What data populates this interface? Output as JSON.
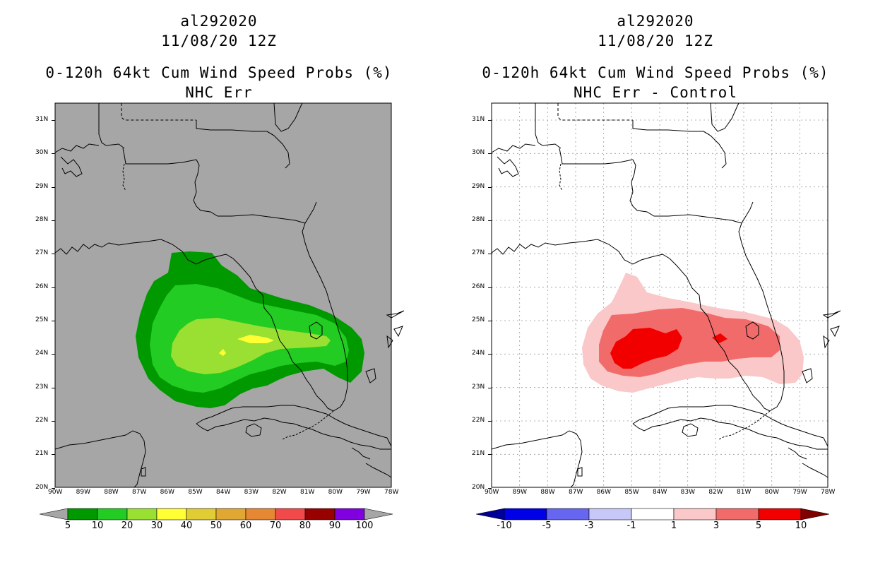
{
  "colors": {
    "land_gray": "#a6a6a6",
    "grid": "#9a9a9a"
  },
  "left_panel": {
    "title_line1": "al292020",
    "title_line2": "11/08/20 12Z",
    "title_line3": "0-120h 64kt Cum Wind Speed Probs (%)",
    "title_line4": "NHC Err",
    "colorbar": {
      "colors": [
        "#009900",
        "#22cc22",
        "#99e033",
        "#ffff33",
        "#e0cc33",
        "#e0a833",
        "#e68833",
        "#f24a4a",
        "#990000",
        "#8000e0"
      ],
      "labels": [
        "5",
        "10",
        "20",
        "30",
        "40",
        "50",
        "60",
        "70",
        "80",
        "90",
        "100"
      ],
      "low_extend_color": "#a6a6a6",
      "high_extend_color": "#a6a6a6"
    }
  },
  "right_panel": {
    "title_line1": "al292020",
    "title_line2": "11/08/20 12Z",
    "title_line3": "0-120h 64kt Cum Wind Speed Probs (%)",
    "title_line4": "NHC Err - Control",
    "colorbar": {
      "colors": [
        "#0000e6",
        "#6666f0",
        "#c8c8f8",
        "#ffffff",
        "#fac8c8",
        "#f26b6b",
        "#f20000"
      ],
      "labels": [
        "-10",
        "-5",
        "-3",
        "-1",
        "1",
        "3",
        "5",
        "10"
      ],
      "low_extend_color": "#000099",
      "high_extend_color": "#800000"
    }
  },
  "axes": {
    "lon_labels": [
      "90W",
      "89W",
      "88W",
      "87W",
      "86W",
      "85W",
      "84W",
      "83W",
      "82W",
      "81W",
      "80W",
      "79W",
      "78W"
    ],
    "lat_labels": [
      "31N",
      "30N",
      "29N",
      "28N",
      "27N",
      "26N",
      "25N",
      "24N",
      "23N",
      "22N",
      "21N",
      "20N"
    ]
  }
}
